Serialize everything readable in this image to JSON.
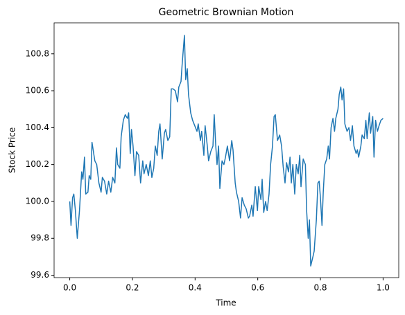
{
  "chart_data": {
    "type": "line",
    "title": "Geometric Brownian Motion",
    "x_label": "Time",
    "y_label": "Stock Price",
    "xlim": [
      -0.05,
      1.05
    ],
    "ylim": [
      99.587,
      100.968
    ],
    "xticks": [
      {
        "value": 0,
        "label": "0.0"
      },
      0.2,
      0.4,
      0.6,
      0.8,
      {
        "value": 1,
        "label": "1.0"
      }
    ],
    "yticks": [
      99.6,
      99.8,
      {
        "value": 100,
        "label": "100.0"
      },
      100.2,
      100.4,
      100.6,
      100.8
    ],
    "series": [
      {
        "color": "#1f77b4",
        "x": [
          0,
          0.004,
          0.009,
          0.013,
          0.018,
          0.024,
          0.031,
          0.038,
          0.042,
          0.047,
          0.051,
          0.058,
          0.062,
          0.067,
          0.071,
          0.08,
          0.086,
          0.093,
          0.1,
          0.104,
          0.111,
          0.118,
          0.124,
          0.131,
          0.137,
          0.144,
          0.149,
          0.153,
          0.16,
          0.164,
          0.171,
          0.177,
          0.184,
          0.188,
          0.193,
          0.197,
          0.202,
          0.208,
          0.213,
          0.22,
          0.226,
          0.233,
          0.237,
          0.244,
          0.251,
          0.257,
          0.262,
          0.268,
          0.273,
          0.279,
          0.284,
          0.288,
          0.295,
          0.302,
          0.306,
          0.313,
          0.319,
          0.324,
          0.33,
          0.337,
          0.344,
          0.348,
          0.355,
          0.359,
          0.366,
          0.37,
          0.375,
          0.379,
          0.386,
          0.392,
          0.399,
          0.406,
          0.41,
          0.417,
          0.421,
          0.428,
          0.432,
          0.439,
          0.443,
          0.45,
          0.457,
          0.461,
          0.466,
          0.47,
          0.475,
          0.479,
          0.486,
          0.492,
          0.497,
          0.503,
          0.51,
          0.517,
          0.521,
          0.528,
          0.532,
          0.539,
          0.545,
          0.55,
          0.557,
          0.563,
          0.57,
          0.574,
          0.581,
          0.585,
          0.592,
          0.599,
          0.603,
          0.61,
          0.614,
          0.619,
          0.625,
          0.63,
          0.636,
          0.641,
          0.647,
          0.652,
          0.656,
          0.663,
          0.67,
          0.676,
          0.681,
          0.687,
          0.692,
          0.698,
          0.703,
          0.707,
          0.712,
          0.718,
          0.723,
          0.729,
          0.734,
          0.738,
          0.745,
          0.752,
          0.756,
          0.761,
          0.765,
          0.769,
          0.776,
          0.78,
          0.787,
          0.792,
          0.796,
          0.8,
          0.805,
          0.809,
          0.814,
          0.82,
          0.825,
          0.829,
          0.834,
          0.84,
          0.845,
          0.849,
          0.856,
          0.86,
          0.865,
          0.869,
          0.874,
          0.878,
          0.885,
          0.891,
          0.896,
          0.902,
          0.907,
          0.914,
          0.918,
          0.922,
          0.929,
          0.933,
          0.94,
          0.945,
          0.949,
          0.956,
          0.96,
          0.967,
          0.971,
          0.976,
          0.982,
          0.987,
          0.993,
          1
        ],
        "values": [
          100.0,
          99.87,
          100.02,
          100.04,
          99.95,
          99.8,
          99.95,
          100.16,
          100.12,
          100.24,
          100.04,
          100.05,
          100.14,
          100.12,
          100.32,
          100.22,
          100.2,
          100.1,
          100.05,
          100.13,
          100.11,
          100.04,
          100.11,
          100.05,
          100.13,
          100.1,
          100.29,
          100.2,
          100.18,
          100.35,
          100.44,
          100.47,
          100.45,
          100.48,
          100.26,
          100.39,
          100.3,
          100.14,
          100.27,
          100.25,
          100.1,
          100.22,
          100.15,
          100.2,
          100.14,
          100.22,
          100.13,
          100.18,
          100.3,
          100.25,
          100.38,
          100.42,
          100.23,
          100.37,
          100.39,
          100.33,
          100.35,
          100.61,
          100.61,
          100.6,
          100.54,
          100.62,
          100.65,
          100.75,
          100.9,
          100.66,
          100.72,
          100.58,
          100.48,
          100.44,
          100.41,
          100.38,
          100.42,
          100.33,
          100.38,
          100.25,
          100.41,
          100.3,
          100.22,
          100.27,
          100.3,
          100.47,
          100.3,
          100.2,
          100.3,
          100.07,
          100.22,
          100.2,
          100.24,
          100.3,
          100.22,
          100.33,
          100.28,
          100.1,
          100.05,
          100.0,
          99.91,
          100.02,
          99.98,
          99.96,
          99.91,
          99.92,
          99.98,
          99.92,
          100.08,
          99.95,
          100.08,
          100.01,
          100.12,
          99.94,
          100.0,
          99.95,
          100.04,
          100.2,
          100.3,
          100.46,
          100.47,
          100.33,
          100.36,
          100.3,
          100.19,
          100.1,
          100.21,
          100.16,
          100.24,
          100.1,
          100.2,
          100.04,
          100.2,
          100.15,
          100.25,
          100.08,
          100.23,
          100.2,
          99.95,
          99.8,
          99.9,
          99.65,
          99.7,
          99.73,
          99.9,
          100.1,
          100.11,
          100.02,
          99.87,
          100.05,
          100.2,
          100.23,
          100.3,
          100.23,
          100.4,
          100.45,
          100.38,
          100.45,
          100.5,
          100.58,
          100.62,
          100.55,
          100.61,
          100.42,
          100.38,
          100.4,
          100.33,
          100.41,
          100.3,
          100.26,
          100.28,
          100.24,
          100.3,
          100.36,
          100.34,
          100.44,
          100.34,
          100.48,
          100.37,
          100.46,
          100.24,
          100.44,
          100.38,
          100.41,
          100.44,
          100.45
        ]
      }
    ]
  }
}
